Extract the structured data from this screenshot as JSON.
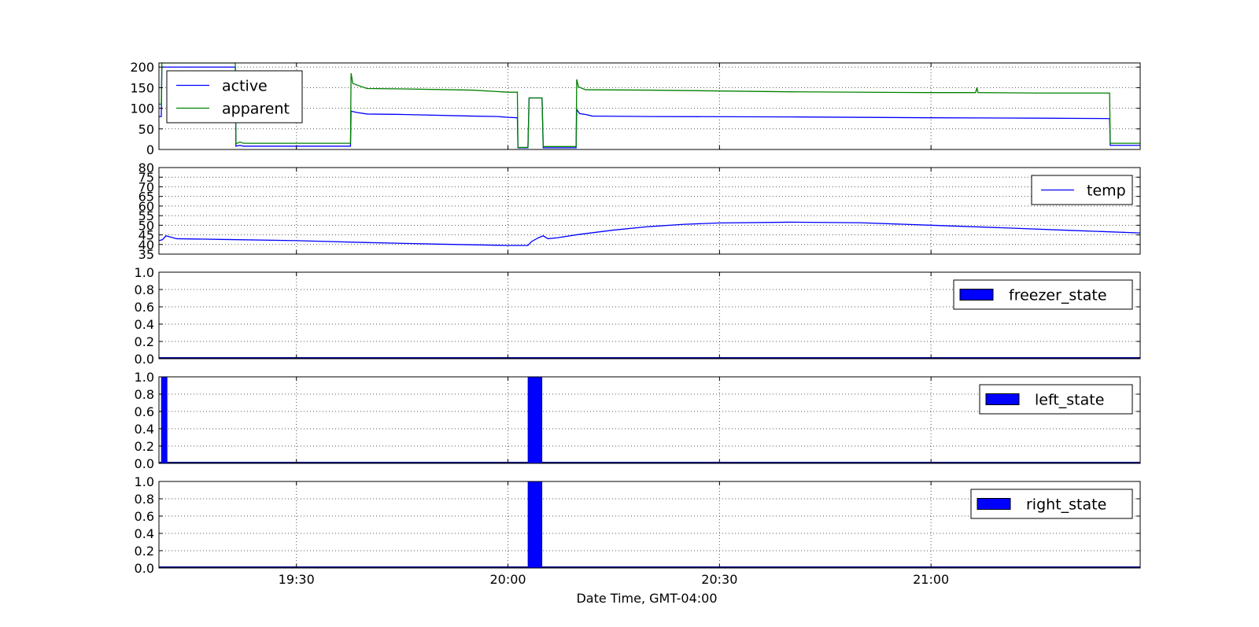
{
  "colors": {
    "active": "#0000ff",
    "apparent": "#008000",
    "temp": "#0000ff",
    "bar_fill": "#0000ff",
    "bar_edge": "#000080",
    "grid": "#555555",
    "axes": "#000000",
    "background": "#ffffff"
  },
  "chart_data": {
    "type": "line",
    "xlabel": "Date Time, GMT-04:00",
    "x_ticks": [
      "19:30",
      "20:00",
      "20:30",
      "21:00"
    ],
    "x_range": [
      "19:10:30",
      "21:29:40"
    ],
    "grid": true,
    "panels": [
      {
        "id": "power",
        "type": "line",
        "ylim": [
          0,
          210
        ],
        "yticks": [
          "0",
          "50",
          "100",
          "150",
          "200"
        ],
        "legend_position": "upper left",
        "series": [
          {
            "name": "active",
            "color_key": "active",
            "points": [
              [
                "19:10:30",
                80
              ],
              [
                "19:10:50",
                80
              ],
              [
                "19:10:55",
                200
              ],
              [
                "19:11:40",
                200
              ],
              [
                "19:21:20",
                200
              ],
              [
                "19:21:25",
                8
              ],
              [
                "19:22:00",
                10
              ],
              [
                "19:22:30",
                8
              ],
              [
                "19:37:40",
                8
              ],
              [
                "19:37:45",
                93
              ],
              [
                "19:38:30",
                90
              ],
              [
                "19:40:00",
                86
              ],
              [
                "19:45:00",
                85
              ],
              [
                "19:55:00",
                81
              ],
              [
                "19:58:30",
                80
              ],
              [
                "20:00:00",
                78
              ],
              [
                "20:01:20",
                77
              ],
              [
                "20:01:25",
                4
              ],
              [
                "20:02:50",
                4
              ],
              [
                "20:03:00",
                125
              ],
              [
                "20:04:50",
                125
              ],
              [
                "20:05:00",
                4
              ],
              [
                "20:09:40",
                4
              ],
              [
                "20:09:45",
                97
              ],
              [
                "20:10:10",
                87
              ],
              [
                "20:11:00",
                85
              ],
              [
                "20:12:00",
                81
              ],
              [
                "20:20:00",
                80
              ],
              [
                "20:40:00",
                79
              ],
              [
                "21:00:00",
                77
              ],
              [
                "21:15:00",
                76
              ],
              [
                "21:25:20",
                75
              ],
              [
                "21:25:25",
                10
              ],
              [
                "21:29:40",
                10
              ]
            ]
          },
          {
            "name": "apparent",
            "color_key": "apparent",
            "points": [
              [
                "19:10:30",
                110
              ],
              [
                "19:10:50",
                110
              ],
              [
                "19:10:55",
                210
              ],
              [
                "19:11:40",
                210
              ],
              [
                "19:21:20",
                210
              ],
              [
                "19:21:25",
                14
              ],
              [
                "19:22:00",
                18
              ],
              [
                "19:22:30",
                15
              ],
              [
                "19:37:40",
                15
              ],
              [
                "19:37:45",
                185
              ],
              [
                "19:38:00",
                160
              ],
              [
                "19:40:00",
                148
              ],
              [
                "19:45:00",
                147
              ],
              [
                "19:55:00",
                144
              ],
              [
                "20:00:00",
                139
              ],
              [
                "20:01:20",
                139
              ],
              [
                "20:01:25",
                5
              ],
              [
                "20:02:50",
                5
              ],
              [
                "20:03:00",
                125
              ],
              [
                "20:04:50",
                125
              ],
              [
                "20:05:00",
                7
              ],
              [
                "20:09:40",
                7
              ],
              [
                "20:09:45",
                170
              ],
              [
                "20:10:00",
                152
              ],
              [
                "20:11:00",
                145
              ],
              [
                "20:20:00",
                144
              ],
              [
                "20:40:00",
                140
              ],
              [
                "21:00:00",
                138
              ],
              [
                "21:06:20",
                138
              ],
              [
                "21:06:30",
                150
              ],
              [
                "21:06:40",
                138
              ],
              [
                "21:15:00",
                137
              ],
              [
                "21:25:20",
                137
              ],
              [
                "21:25:25",
                15
              ],
              [
                "21:29:40",
                15
              ]
            ]
          }
        ]
      },
      {
        "id": "temperature",
        "type": "line",
        "ylim": [
          35,
          80
        ],
        "yticks": [
          "35",
          "40",
          "45",
          "50",
          "55",
          "60",
          "65",
          "70",
          "75",
          "80"
        ],
        "legend_position": "upper right",
        "series": [
          {
            "name": "temp",
            "color_key": "temp",
            "points": [
              [
                "19:10:30",
                42
              ],
              [
                "19:11:00",
                42.5
              ],
              [
                "19:11:30",
                44.5
              ],
              [
                "19:12:00",
                44
              ],
              [
                "19:13:00",
                43
              ],
              [
                "19:20:00",
                42.6
              ],
              [
                "19:30:00",
                42
              ],
              [
                "19:40:00",
                41
              ],
              [
                "19:50:00",
                40.2
              ],
              [
                "20:00:00",
                39.5
              ],
              [
                "20:02:50",
                39.5
              ],
              [
                "20:03:20",
                41.5
              ],
              [
                "20:04:20",
                43.5
              ],
              [
                "20:05:00",
                44.5
              ],
              [
                "20:05:40",
                43
              ],
              [
                "20:07:00",
                43.5
              ],
              [
                "20:10:00",
                45.2
              ],
              [
                "20:15:00",
                47.5
              ],
              [
                "20:20:00",
                49.3
              ],
              [
                "20:25:00",
                50.5
              ],
              [
                "20:30:00",
                51.2
              ],
              [
                "20:40:00",
                51.6
              ],
              [
                "20:50:00",
                51.3
              ],
              [
                "21:00:00",
                50
              ],
              [
                "21:10:00",
                48.7
              ],
              [
                "21:20:00",
                47.3
              ],
              [
                "21:29:40",
                46
              ]
            ]
          }
        ]
      },
      {
        "id": "freezer",
        "type": "bar",
        "ylim": [
          0,
          1
        ],
        "yticks": [
          "0.0",
          "0.2",
          "0.4",
          "0.6",
          "0.8",
          "1.0"
        ],
        "legend_position": "upper right",
        "series": [
          {
            "name": "freezer_state",
            "color_key": "bar_fill",
            "on_intervals": []
          }
        ]
      },
      {
        "id": "left",
        "type": "bar",
        "ylim": [
          0,
          1
        ],
        "yticks": [
          "0.0",
          "0.2",
          "0.4",
          "0.6",
          "0.8",
          "1.0"
        ],
        "legend_position": "upper right",
        "series": [
          {
            "name": "left_state",
            "color_key": "bar_fill",
            "on_intervals": [
              [
                "19:10:50",
                "19:11:40"
              ],
              [
                "20:02:50",
                "20:04:50"
              ]
            ]
          }
        ]
      },
      {
        "id": "right",
        "type": "bar",
        "ylim": [
          0,
          1
        ],
        "yticks": [
          "0.0",
          "0.2",
          "0.4",
          "0.6",
          "0.8",
          "1.0"
        ],
        "legend_position": "upper right",
        "series": [
          {
            "name": "right_state",
            "color_key": "bar_fill",
            "on_intervals": [
              [
                "20:02:50",
                "20:04:50"
              ]
            ]
          }
        ]
      }
    ]
  }
}
